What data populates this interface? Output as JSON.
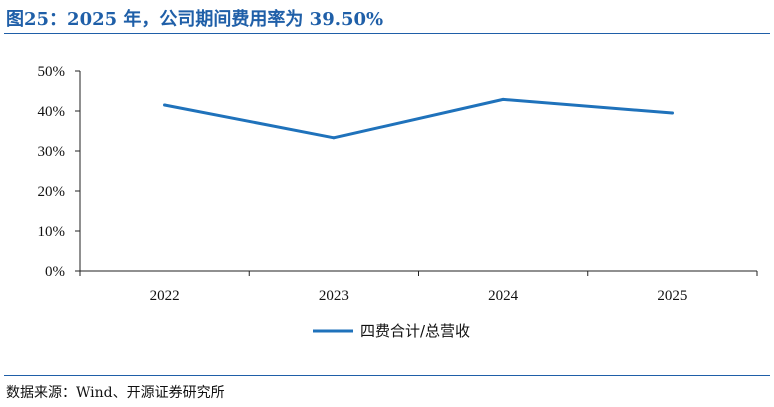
{
  "figure": {
    "title": "图25：2025 年，公司期间费用率为 39.50%",
    "source": "数据来源：Wind、开源证券研究所"
  },
  "colors": {
    "accent": "#1f5fa8",
    "series": "#1f72bb",
    "axis": "#222222"
  },
  "chart_data": {
    "type": "line",
    "title": "",
    "xlabel": "",
    "ylabel": "",
    "x": [
      "2022",
      "2023",
      "2024",
      "2025"
    ],
    "series": [
      {
        "name": "四费合计/总营收",
        "values": [
          41.5,
          33.3,
          42.9,
          39.5
        ]
      }
    ],
    "ylim": [
      0,
      50
    ],
    "yticks": [
      "0%",
      "10%",
      "20%",
      "30%",
      "40%",
      "50%"
    ],
    "ytick_values": [
      0,
      10,
      20,
      30,
      40,
      50
    ],
    "grid": false,
    "legend": "bottom-center"
  }
}
